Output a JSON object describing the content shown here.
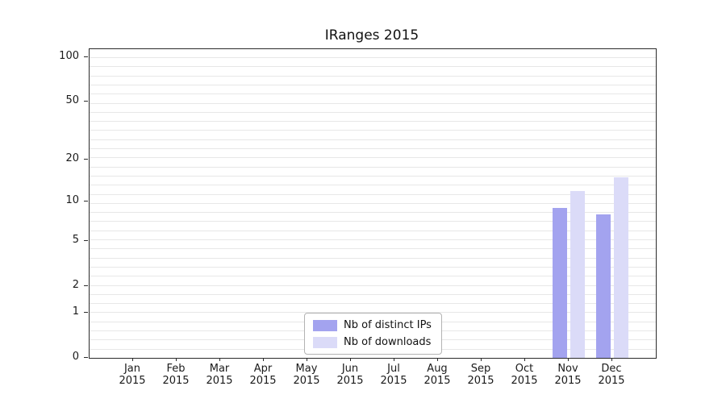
{
  "chart_data": {
    "type": "bar",
    "title": "IRanges 2015",
    "year_label": "2015",
    "categories": [
      "Jan",
      "Feb",
      "Mar",
      "Apr",
      "May",
      "Jun",
      "Jul",
      "Aug",
      "Sep",
      "Oct",
      "Nov",
      "Dec"
    ],
    "series": [
      {
        "name": "Nb of distinct IPs",
        "color": "#a3a3ef",
        "values": [
          0,
          0,
          0,
          0,
          0,
          0,
          0,
          0,
          0,
          0,
          9,
          8
        ]
      },
      {
        "name": "Nb of downloads",
        "color": "#dbdbf8",
        "values": [
          0,
          0,
          0,
          0,
          0,
          0,
          0,
          0,
          0,
          0,
          12,
          15
        ]
      }
    ],
    "yticks": [
      0,
      1,
      2,
      5,
      10,
      20,
      50,
      100
    ],
    "ylim": [
      0,
      100
    ],
    "yscale": "log1p",
    "grid": true,
    "legend_position": "bottom-center"
  }
}
